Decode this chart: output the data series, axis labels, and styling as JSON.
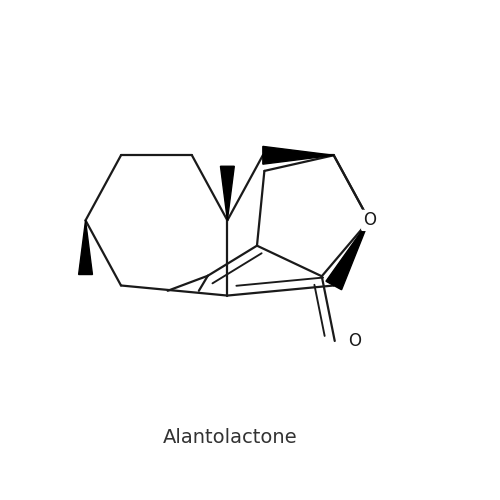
{
  "title": "Alantolactone",
  "title_fontsize": 14,
  "title_color": "#333333",
  "bg_color": "#ffffff",
  "line_color": "#1a1a1a",
  "line_width": 1.6,
  "wedge_color": "#000000",
  "label_O_ring": "O",
  "label_O_keto": "O",
  "fig_size": [
    5.0,
    5.0
  ],
  "dpi": 100
}
